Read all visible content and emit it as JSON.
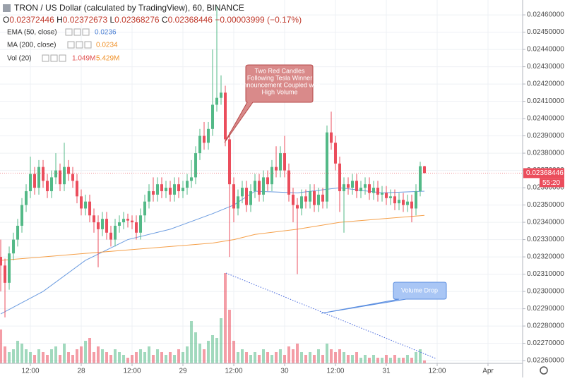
{
  "header": {
    "title": "TRON / US Dollar (calculated by TradingView), 60, BINANCE",
    "ohlc": [
      "O",
      "0.02372446",
      " H",
      "0.02372673",
      " L",
      "0.02368276",
      " C",
      "0.02368446",
      " −0.00003999 (−0.17%)"
    ]
  },
  "indicators": [
    {
      "label": "EMA (50, close)",
      "value": "0.0236"
    },
    {
      "label": "MA (200, close)",
      "value": "0.0234"
    },
    {
      "label": "Vol (20)",
      "value": "1.049M",
      "value2": "5.429M"
    }
  ],
  "annotations": [
    {
      "lines": [
        "Two Red Candles",
        "Following Tesla Winner",
        "Announcement Coupled with",
        "High Volume"
      ]
    },
    {
      "lines": [
        "Volume Drop"
      ]
    }
  ],
  "chart_data": {
    "type": "candlestick",
    "xlim": [
      -0.17,
      123.17
    ],
    "ylim": [
      0.022584,
      0.024686
    ],
    "xticks": [
      {
        "value": 7,
        "label": "12:00"
      },
      {
        "value": 19,
        "label": "28"
      },
      {
        "value": 31,
        "label": "12:00"
      },
      {
        "value": 43,
        "label": "29"
      },
      {
        "value": 55,
        "label": "12:00"
      },
      {
        "value": 67,
        "label": "30"
      },
      {
        "value": 79,
        "label": "12:00"
      },
      {
        "value": 91,
        "label": "31"
      },
      {
        "value": 103,
        "label": "12:00"
      },
      {
        "value": 115,
        "label": "Apr"
      }
    ],
    "yticks": [
      {
        "value": 0.0226,
        "label": "0.02260000"
      },
      {
        "value": 0.0227,
        "label": "0.02270000"
      },
      {
        "value": 0.0228,
        "label": "0.02280000"
      },
      {
        "value": 0.0229,
        "label": "0.02290000"
      },
      {
        "value": 0.023,
        "label": "0.02300000"
      },
      {
        "value": 0.0231,
        "label": "0.02310000"
      },
      {
        "value": 0.0232,
        "label": "0.02320000"
      },
      {
        "value": 0.0233,
        "label": "0.02330000"
      },
      {
        "value": 0.0234,
        "label": "0.02340000"
      },
      {
        "value": 0.0235,
        "label": "0.02350000"
      },
      {
        "value": 0.0236,
        "label": "0.02360000"
      },
      {
        "value": 0.0237,
        "label": "0.02370000"
      },
      {
        "value": 0.0238,
        "label": "0.02380000"
      },
      {
        "value": 0.0239,
        "label": "0.02390000"
      },
      {
        "value": 0.024,
        "label": "0.02400000"
      },
      {
        "value": 0.0241,
        "label": "0.02410000"
      },
      {
        "value": 0.0242,
        "label": "0.02420000"
      },
      {
        "value": 0.0243,
        "label": "0.02430000"
      },
      {
        "value": 0.0244,
        "label": "0.02440000"
      },
      {
        "value": 0.0245,
        "label": "0.02450000"
      },
      {
        "value": 0.0246,
        "label": "0.02460000"
      }
    ],
    "grid": true,
    "up_color": "#53b987",
    "down_color": "#eb4d5c",
    "open": [
      0.0232,
      0.02315,
      0.02305,
      0.02322,
      0.0233,
      0.02338,
      0.0235,
      0.02358,
      0.02368,
      0.0236,
      0.02372,
      0.02364,
      0.02358,
      0.02366,
      0.0237,
      0.02362,
      0.02372,
      0.02368,
      0.02364,
      0.02355,
      0.02348,
      0.02352,
      0.02344,
      0.0234,
      0.02336,
      0.02342,
      0.02334,
      0.0233,
      0.02338,
      0.0234,
      0.02342,
      0.02341,
      0.0234,
      0.02334,
      0.02344,
      0.02352,
      0.02358,
      0.02356,
      0.02362,
      0.02358,
      0.0236,
      0.02356,
      0.02362,
      0.02358,
      0.0236,
      0.02364,
      0.02366,
      0.0238,
      0.0239,
      0.02386,
      0.02394,
      0.02408,
      0.02412,
      0.02415,
      0.02388,
      0.02362,
      0.02348,
      0.02355,
      0.0236,
      0.0235,
      0.02358,
      0.02364,
      0.02356,
      0.02366,
      0.02362,
      0.02372,
      0.0237,
      0.0238,
      0.0237,
      0.02356,
      0.0235,
      0.02348,
      0.02355,
      0.02352,
      0.02358,
      0.0235,
      0.02356,
      0.02352,
      0.02392,
      0.02386,
      0.02374,
      0.02358,
      0.02362,
      0.0236,
      0.02364,
      0.02358,
      0.0236,
      0.02362,
      0.02357,
      0.0236,
      0.02356,
      0.02357,
      0.02354,
      0.02355,
      0.02351,
      0.02353,
      0.0235,
      0.02352,
      0.02348,
      0.02358,
      0.02372446
    ],
    "high": [
      0.0233,
      0.02319,
      0.02326,
      0.02334,
      0.02342,
      0.02354,
      0.02362,
      0.02378,
      0.02372,
      0.02376,
      0.02376,
      0.02368,
      0.0237,
      0.0238,
      0.02374,
      0.02386,
      0.02376,
      0.02372,
      0.02368,
      0.02359,
      0.02356,
      0.02356,
      0.02348,
      0.02344,
      0.02346,
      0.02346,
      0.02338,
      0.02342,
      0.02344,
      0.02346,
      0.02345,
      0.02344,
      0.02344,
      0.02348,
      0.02356,
      0.02362,
      0.02366,
      0.02366,
      0.02366,
      0.02364,
      0.02364,
      0.02366,
      0.02366,
      0.02364,
      0.02368,
      0.02376,
      0.02384,
      0.02394,
      0.02398,
      0.02398,
      0.0244,
      0.02465,
      0.02425,
      0.02419,
      0.02392,
      0.02366,
      0.02359,
      0.02364,
      0.02364,
      0.02362,
      0.02368,
      0.02368,
      0.0237,
      0.0237,
      0.02376,
      0.02384,
      0.02384,
      0.0239,
      0.02374,
      0.0236,
      0.02354,
      0.02359,
      0.02359,
      0.02362,
      0.02362,
      0.0236,
      0.0236,
      0.02396,
      0.02404,
      0.0239,
      0.02378,
      0.02366,
      0.02366,
      0.02368,
      0.02368,
      0.02364,
      0.02366,
      0.02366,
      0.02364,
      0.02364,
      0.02361,
      0.02361,
      0.02359,
      0.02359,
      0.02357,
      0.02357,
      0.02356,
      0.02356,
      0.02362,
      0.02375,
      0.02372673
    ],
    "low": [
      0.023,
      0.02285,
      0.02301,
      0.02318,
      0.02326,
      0.02334,
      0.02346,
      0.02354,
      0.02356,
      0.02356,
      0.0236,
      0.02354,
      0.02354,
      0.02362,
      0.02358,
      0.02358,
      0.02364,
      0.0236,
      0.02351,
      0.02344,
      0.02344,
      0.0234,
      0.02334,
      0.02314,
      0.02332,
      0.0233,
      0.02326,
      0.02326,
      0.02334,
      0.02336,
      0.02337,
      0.02336,
      0.0233,
      0.0233,
      0.0234,
      0.02348,
      0.02352,
      0.02352,
      0.02354,
      0.02354,
      0.02352,
      0.02352,
      0.02354,
      0.02354,
      0.02356,
      0.0236,
      0.02362,
      0.02376,
      0.02382,
      0.02382,
      0.0239,
      0.02404,
      0.02408,
      0.02384,
      0.0232,
      0.0234,
      0.02344,
      0.02351,
      0.02346,
      0.02346,
      0.02354,
      0.02352,
      0.02352,
      0.02358,
      0.02358,
      0.02366,
      0.02366,
      0.02366,
      0.02352,
      0.0234,
      0.0231,
      0.02344,
      0.02348,
      0.02348,
      0.02346,
      0.02346,
      0.02348,
      0.02348,
      0.02382,
      0.0237,
      0.02346,
      0.02334,
      0.02356,
      0.02356,
      0.02354,
      0.02354,
      0.02356,
      0.02353,
      0.02353,
      0.02352,
      0.02352,
      0.0235,
      0.0235,
      0.02347,
      0.02347,
      0.02346,
      0.02346,
      0.0234,
      0.02344,
      0.02355,
      0.02368276
    ],
    "close": [
      0.02315,
      0.02305,
      0.02322,
      0.0233,
      0.02338,
      0.0235,
      0.02358,
      0.02368,
      0.0236,
      0.02372,
      0.02364,
      0.02358,
      0.02366,
      0.0237,
      0.02362,
      0.02372,
      0.02368,
      0.02364,
      0.02355,
      0.02348,
      0.02352,
      0.02344,
      0.0234,
      0.02336,
      0.02342,
      0.02334,
      0.0233,
      0.02338,
      0.0234,
      0.02342,
      0.02341,
      0.0234,
      0.02334,
      0.02344,
      0.02352,
      0.02358,
      0.02356,
      0.02362,
      0.02358,
      0.0236,
      0.02356,
      0.02362,
      0.02358,
      0.0236,
      0.02364,
      0.02366,
      0.0238,
      0.0239,
      0.02386,
      0.02394,
      0.02408,
      0.02412,
      0.02415,
      0.02388,
      0.02362,
      0.02348,
      0.02355,
      0.0236,
      0.0235,
      0.02358,
      0.02364,
      0.02356,
      0.02366,
      0.02362,
      0.02372,
      0.0237,
      0.0238,
      0.0237,
      0.02356,
      0.0235,
      0.02348,
      0.02355,
      0.02352,
      0.02358,
      0.0235,
      0.02356,
      0.02352,
      0.02392,
      0.02386,
      0.02374,
      0.02358,
      0.02362,
      0.0236,
      0.02364,
      0.02358,
      0.0236,
      0.02362,
      0.02357,
      0.0236,
      0.02356,
      0.02357,
      0.02354,
      0.02355,
      0.02351,
      0.02353,
      0.0235,
      0.02352,
      0.02348,
      0.02358,
      0.02372446,
      0.02368446
    ],
    "volume": [
      12000000.0,
      6000000.0,
      4000000.0,
      5000000.0,
      8000000.0,
      7000000.0,
      5000000.0,
      4000000.0,
      3000000.0,
      5000000.0,
      4000000.0,
      3000000.0,
      5000000.0,
      6000000.0,
      3000000.0,
      7000000.0,
      4000000.0,
      3000000.0,
      5000000.0,
      6000000.0,
      8000000.0,
      9000000.0,
      4000000.0,
      6000000.0,
      5000000.0,
      4000000.0,
      3000000.0,
      5000000.0,
      4000000.0,
      3000000.0,
      2000000.0,
      3000000.0,
      4000000.0,
      5000000.0,
      4000000.0,
      6000000.0,
      3000000.0,
      5000000.0,
      4000000.0,
      3000000.0,
      4000000.0,
      3000000.0,
      5000000.0,
      4000000.0,
      6000000.0,
      15000000.0,
      11000000.0,
      7000000.0,
      5000000.0,
      8000000.0,
      10000000.0,
      9000000.0,
      16000000.0,
      32000000.0,
      19000000.0,
      8000000.0,
      4000000.0,
      5000000.0,
      4000000.0,
      3000000.0,
      4000000.0,
      3000000.0,
      5000000.0,
      4000000.0,
      3000000.0,
      4000000.0,
      5000000.0,
      3000000.0,
      6000000.0,
      5000000.0,
      7000000.0,
      4000000.0,
      3000000.0,
      4000000.0,
      3000000.0,
      5000000.0,
      3000000.0,
      7000000.0,
      5000000.0,
      4000000.0,
      5000000.0,
      4000000.0,
      3000000.0,
      3000000.0,
      4000000.0,
      2000000.0,
      3000000.0,
      2000000.0,
      3000000.0,
      2000000.0,
      2000000.0,
      3000000.0,
      2000000.0,
      3000000.0,
      2000000.0,
      2000000.0,
      3000000.0,
      2000000.0,
      4000000.0,
      5000000.0,
      1049000
    ],
    "vol_ylim": [
      0,
      32000000.0
    ],
    "series": [
      {
        "name": "EMA (50, close)",
        "color": "#6a9be0",
        "x": [
          0,
          10,
          20,
          30,
          40,
          50,
          55,
          60,
          70,
          80,
          90,
          100
        ],
        "values": [
          0.02287,
          0.023,
          0.02318,
          0.0233,
          0.02336,
          0.02345,
          0.0235,
          0.02358,
          0.02357,
          0.0236,
          0.02357,
          0.02358
        ]
      },
      {
        "name": "MA (200, close)",
        "color": "#f5a04a",
        "x": [
          0,
          10,
          20,
          30,
          40,
          50,
          55,
          60,
          70,
          80,
          90,
          100
        ],
        "values": [
          0.02318,
          0.0232,
          0.02322,
          0.02324,
          0.02326,
          0.02328,
          0.0233,
          0.02333,
          0.02336,
          0.0234,
          0.02342,
          0.02344
        ]
      }
    ],
    "last_price": {
      "value": 0.02368446,
      "label": "0.02368446"
    },
    "countdown": "55:20"
  }
}
